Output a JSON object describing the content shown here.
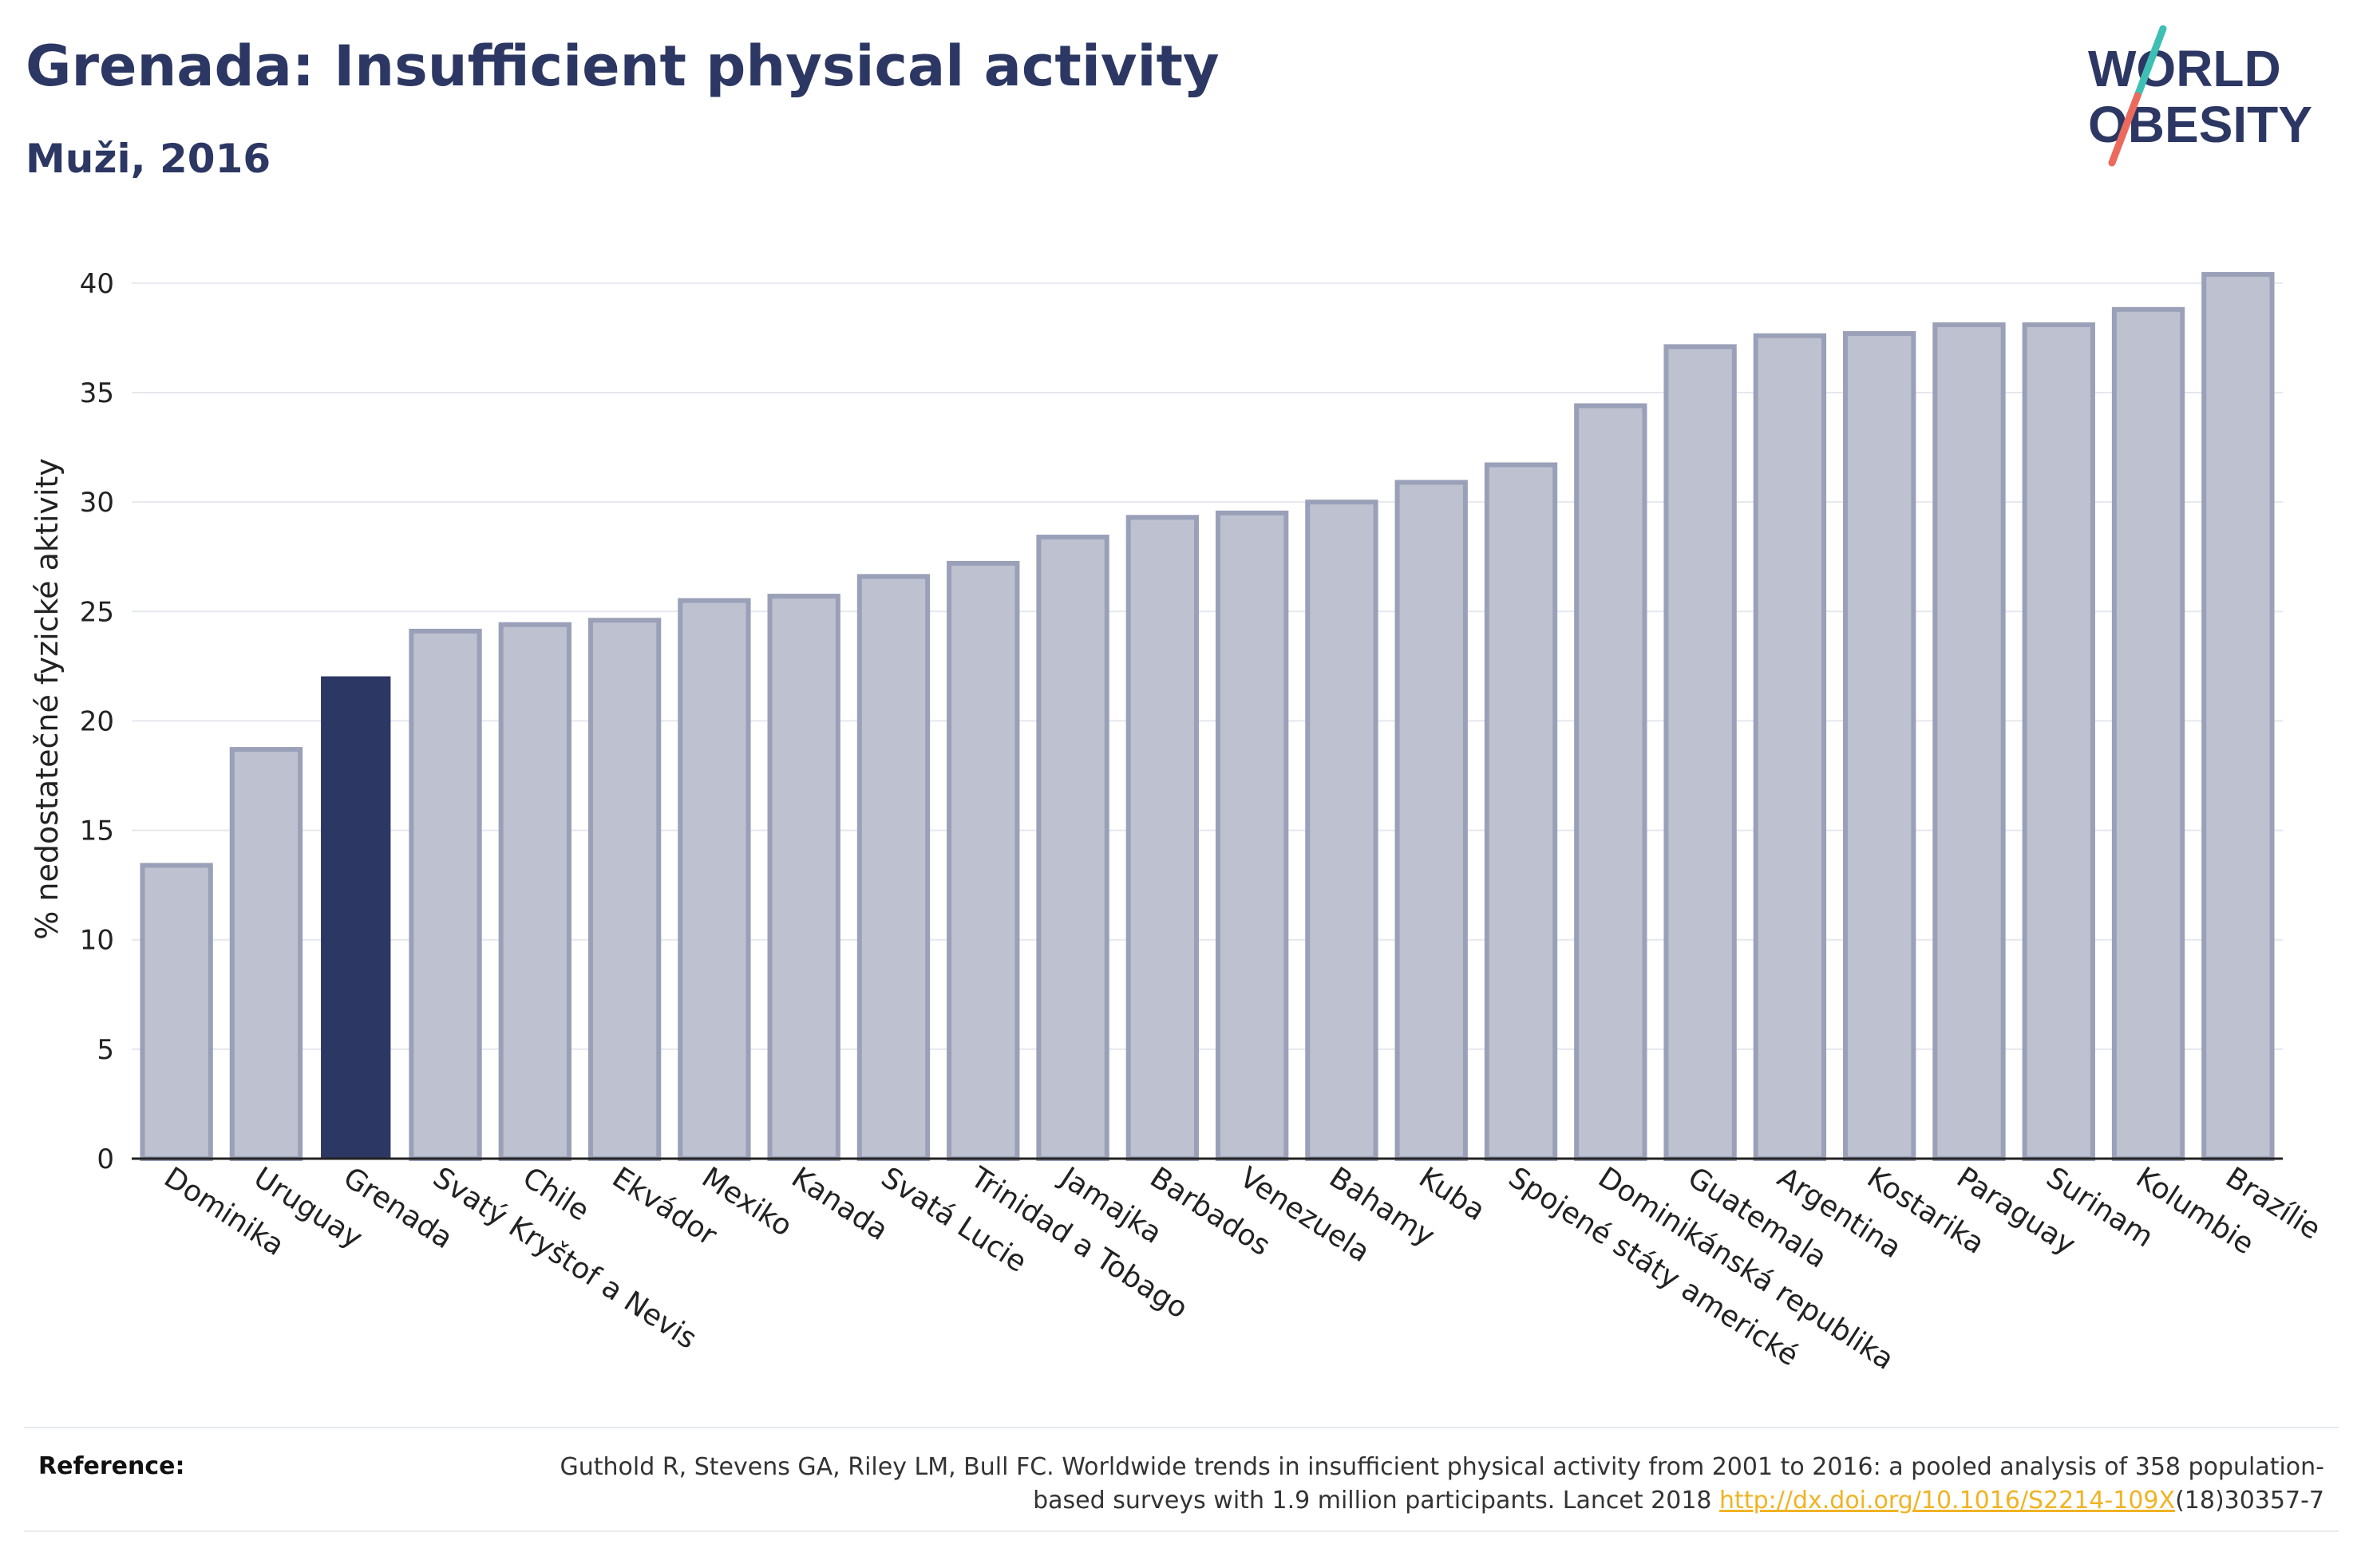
{
  "header": {
    "title": "Grenada: Insufficient physical activity",
    "subtitle": "Muži, 2016"
  },
  "logo": {
    "line1": "WORLD",
    "line2": "OBESITY",
    "colors": {
      "text": "#2c3763",
      "slash_teal": "#3fbfb4",
      "slash_coral": "#ec6a5c"
    }
  },
  "colors": {
    "bar": "#bdc1d0",
    "bar_border": "#9aa0b8",
    "highlight": "#2c3763",
    "grid": "#e6e8ee",
    "axis": "#222222"
  },
  "chart_data": {
    "type": "bar",
    "ylabel": "% nedostatečné fyzické aktivity",
    "xlabel": "",
    "ylim": [
      0,
      42
    ],
    "yticks": [
      0,
      5,
      10,
      15,
      20,
      25,
      30,
      35,
      40
    ],
    "grid": true,
    "highlight": "Grenada",
    "categories": [
      "Dominika",
      "Uruguay",
      "Grenada",
      "Svatý Kryštof a Nevis",
      "Chile",
      "Ekvádor",
      "Mexiko",
      "Kanada",
      "Svatá Lucie",
      "Trinidad a Tobago",
      "Jamajka",
      "Barbados",
      "Venezuela",
      "Bahamy",
      "Kuba",
      "Spojené státy americké",
      "Dominikánská republika",
      "Guatemala",
      "Argentina",
      "Kostarika",
      "Paraguay",
      "Surinam",
      "Kolumbie",
      "Brazílie"
    ],
    "values": [
      13.4,
      18.7,
      22.0,
      24.1,
      24.4,
      24.6,
      25.5,
      25.7,
      26.6,
      27.2,
      28.4,
      29.3,
      29.5,
      30.0,
      30.9,
      31.7,
      34.4,
      37.1,
      37.6,
      37.7,
      38.1,
      38.1,
      38.8,
      40.4
    ]
  },
  "footer": {
    "reference_label": "Reference:",
    "reference_text": "Guthold R, Stevens GA, Riley LM, Bull FC. Worldwide trends in insufficient physical activity from 2001 to 2016: a pooled analysis of 358 population-based surveys with 1.9 million participants. Lancet 2018 ",
    "reference_link": "http://dx.doi.org/10.1016/S2214-109X",
    "reference_suffix": "(18)30357-7"
  }
}
